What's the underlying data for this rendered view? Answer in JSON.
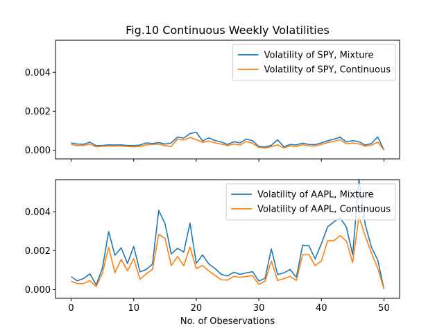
{
  "title": "Fig.10 Continuous Weekly Volatilities",
  "xlabel": "No. of Obeservations",
  "colors": {
    "mixture": "#1f77b4",
    "continuous": "#ff7f0e"
  },
  "chart_data": [
    {
      "type": "line",
      "title": "Fig.10 Continuous Weekly Volatilities",
      "xlabel": "",
      "ylabel": "",
      "xlim": [
        -2.5,
        52.5
      ],
      "ylim": [
        -0.00045,
        0.00565
      ],
      "xticks": [
        0,
        10,
        20,
        30,
        40,
        50
      ],
      "show_xtick_labels": false,
      "yticks": [
        0.0,
        0.002,
        0.004
      ],
      "ytick_labels": [
        "0.000",
        "0.002",
        "0.004"
      ],
      "grid": false,
      "legend_position": "upper right",
      "x": [
        0,
        1,
        2,
        3,
        4,
        5,
        6,
        7,
        8,
        9,
        10,
        11,
        12,
        13,
        14,
        15,
        16,
        17,
        18,
        19,
        20,
        21,
        22,
        23,
        24,
        25,
        26,
        27,
        28,
        29,
        30,
        31,
        32,
        33,
        34,
        35,
        36,
        37,
        38,
        39,
        40,
        41,
        42,
        43,
        44,
        45,
        46,
        47,
        48,
        49,
        50
      ],
      "series": [
        {
          "name": "Volatility of SPY, Mixture",
          "color": "#1f77b4",
          "values": [
            0.00037,
            0.00031,
            0.0003,
            0.00041,
            0.00023,
            0.00024,
            0.00027,
            0.00026,
            0.00027,
            0.00024,
            0.00023,
            0.00026,
            0.00037,
            0.00034,
            0.00039,
            0.00031,
            0.00037,
            0.00067,
            0.00062,
            0.00085,
            0.00092,
            0.00047,
            0.00063,
            0.00049,
            0.00042,
            0.00029,
            0.00043,
            0.00037,
            0.00057,
            0.00048,
            0.00019,
            0.00016,
            0.00025,
            0.00053,
            0.00017,
            0.00029,
            0.00027,
            0.00036,
            0.00029,
            0.00028,
            0.00037,
            0.00048,
            0.00056,
            0.00067,
            0.00042,
            0.00049,
            0.00043,
            0.00026,
            0.00034,
            0.00068,
            1e-05
          ]
        },
        {
          "name": "Volatility of SPY, Continuous",
          "color": "#ff7f0e",
          "values": [
            0.0003,
            0.00023,
            0.00024,
            0.00031,
            0.00017,
            0.0002,
            0.00021,
            0.00021,
            0.00021,
            0.00019,
            0.00017,
            0.00019,
            0.00027,
            0.00029,
            0.00031,
            0.00023,
            0.00019,
            0.00057,
            0.00052,
            0.00065,
            0.00054,
            0.0004,
            0.00047,
            0.00037,
            0.00031,
            0.00023,
            0.00031,
            0.00026,
            0.00044,
            0.00035,
            0.00014,
            0.00011,
            0.00018,
            0.00027,
            0.00011,
            0.00022,
            0.00019,
            0.00028,
            0.00021,
            0.00021,
            0.00029,
            0.00039,
            0.00045,
            0.00054,
            0.00032,
            0.00037,
            0.00032,
            0.0002,
            0.00026,
            0.00041,
            1e-05
          ]
        }
      ]
    },
    {
      "type": "line",
      "title": "",
      "xlabel": "No. of Obeservations",
      "ylabel": "",
      "xlim": [
        -2.5,
        52.5
      ],
      "ylim": [
        -0.00045,
        0.00565
      ],
      "xticks": [
        0,
        10,
        20,
        30,
        40,
        50
      ],
      "xtick_labels": [
        "0",
        "10",
        "20",
        "30",
        "40",
        "50"
      ],
      "yticks": [
        0.0,
        0.002,
        0.004
      ],
      "ytick_labels": [
        "0.000",
        "0.002",
        "0.004"
      ],
      "grid": false,
      "legend_position": "upper right",
      "x": [
        0,
        1,
        2,
        3,
        4,
        5,
        6,
        7,
        8,
        9,
        10,
        11,
        12,
        13,
        14,
        15,
        16,
        17,
        18,
        19,
        20,
        21,
        22,
        23,
        24,
        25,
        26,
        27,
        28,
        29,
        30,
        31,
        32,
        33,
        34,
        35,
        36,
        37,
        38,
        39,
        40,
        41,
        42,
        43,
        44,
        45,
        46,
        47,
        48,
        49,
        50
      ],
      "series": [
        {
          "name": "Volatility of AAPL, Mixture",
          "color": "#1f77b4",
          "values": [
            0.00066,
            0.00045,
            0.00057,
            0.00081,
            0.00024,
            0.00111,
            0.00298,
            0.00176,
            0.00215,
            0.00134,
            0.00222,
            0.00091,
            0.00103,
            0.00131,
            0.00407,
            0.0034,
            0.00183,
            0.00212,
            0.00193,
            0.00342,
            0.00135,
            0.00178,
            0.00132,
            0.00108,
            0.00078,
            0.0007,
            0.00089,
            0.00078,
            0.00086,
            0.00092,
            0.00044,
            0.00058,
            0.00209,
            0.00077,
            0.00086,
            0.00103,
            0.00063,
            0.00228,
            0.00225,
            0.00158,
            0.00236,
            0.00323,
            0.00348,
            0.00369,
            0.00321,
            0.00179,
            0.00565,
            0.00335,
            0.00217,
            0.00153,
            3e-05
          ]
        },
        {
          "name": "Volatility of AAPL, Continuous",
          "color": "#ff7f0e",
          "values": [
            0.00043,
            0.00031,
            0.00031,
            0.00046,
            0.00015,
            0.00084,
            0.00218,
            0.00087,
            0.00155,
            0.00096,
            0.00159,
            0.00053,
            0.00081,
            0.00104,
            0.00283,
            0.00264,
            0.00124,
            0.0017,
            0.00123,
            0.00219,
            0.00108,
            0.00124,
            0.00096,
            0.00073,
            0.0005,
            0.00049,
            0.00068,
            0.00063,
            0.00067,
            0.00072,
            0.00026,
            0.00043,
            0.00147,
            0.00047,
            0.00056,
            0.00068,
            0.00047,
            0.00179,
            0.00179,
            0.00123,
            0.00147,
            0.00251,
            0.00251,
            0.00278,
            0.00249,
            0.00138,
            0.00374,
            0.00276,
            0.00188,
            0.00111,
            2e-05
          ]
        }
      ]
    }
  ]
}
